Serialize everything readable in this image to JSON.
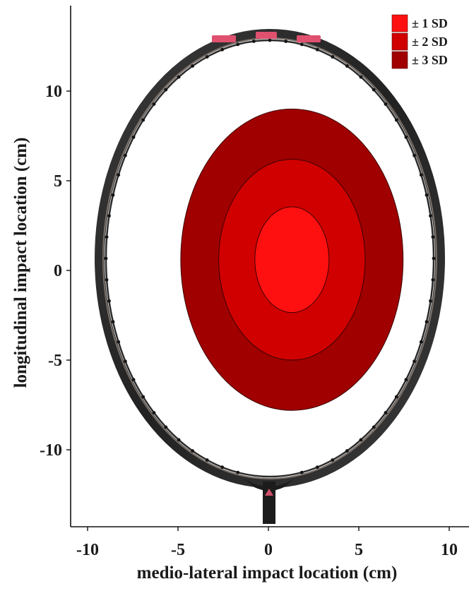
{
  "chart_data": {
    "type": "scatter",
    "title": "",
    "xlabel": "medio-lateral impact location (cm)",
    "ylabel": "longitudinal impact location (cm)",
    "xlim": [
      -11,
      11
    ],
    "ylim": [
      -14.5,
      14.5
    ],
    "x_ticks": [
      {
        "value": -10,
        "label": "-10"
      },
      {
        "value": -5,
        "label": "-5"
      },
      {
        "value": 0,
        "label": "0"
      },
      {
        "value": 5,
        "label": "5"
      },
      {
        "value": 10,
        "label": "10"
      }
    ],
    "y_ticks": [
      {
        "value": 10,
        "label": "10"
      },
      {
        "value": 5,
        "label": "5"
      },
      {
        "value": 0,
        "label": "0"
      },
      {
        "value": -5,
        "label": "-5"
      },
      {
        "value": -10,
        "label": "-10"
      }
    ],
    "grid": false,
    "legend_position": "top-right",
    "center": {
      "x": 1.3,
      "y": 0.6
    },
    "ellipses": [
      {
        "name": "± 3 SD",
        "rx": 6.15,
        "ry": 8.4,
        "color": "#a00000"
      },
      {
        "name": "± 2 SD",
        "rx": 4.05,
        "ry": 5.6,
        "color": "#d00000"
      },
      {
        "name": "± 1 SD",
        "rx": 2.05,
        "ry": 2.95,
        "color": "#ff1010"
      }
    ],
    "legend": [
      {
        "label": "± 1 SD",
        "color": "#ff1010"
      },
      {
        "label": "± 2 SD",
        "color": "#d00000"
      },
      {
        "label": "± 3 SD",
        "color": "#a00000"
      }
    ]
  }
}
